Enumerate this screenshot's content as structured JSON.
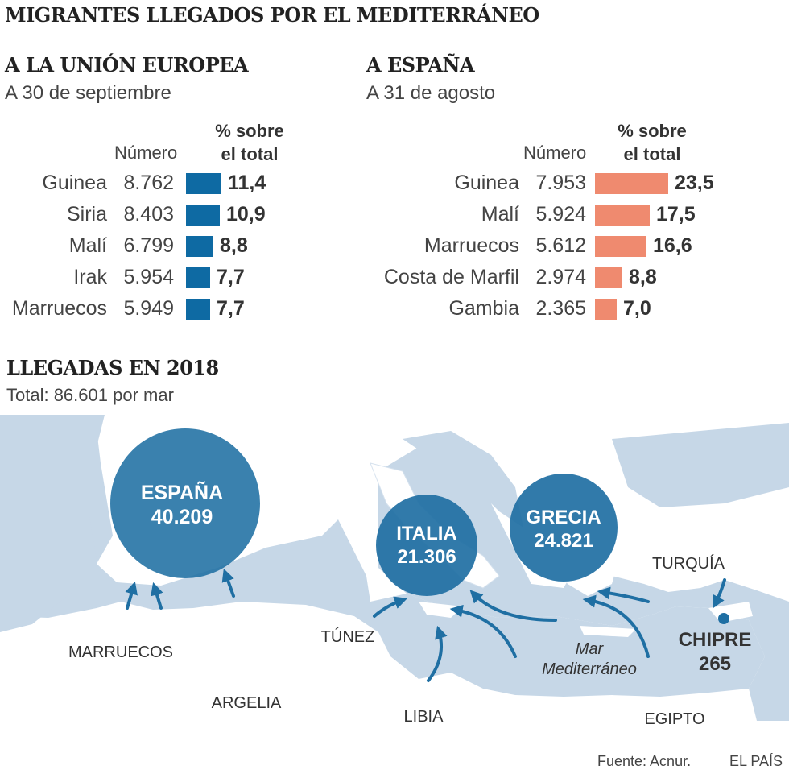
{
  "title": "MIGRANTES LLEGADOS POR EL MEDITERRÁNEO",
  "colors": {
    "eu": "#0e6aa3",
    "spain": "#ef8a6f",
    "sea": "#c8d8e8",
    "circle": "#1f6fa3"
  },
  "eu": {
    "heading": "A LA UNIÓN EUROPEA",
    "date": "A 30 de septiembre",
    "number_label": "Número",
    "pct_label_1": "% sobre",
    "pct_label_2": "el total"
  },
  "spain": {
    "heading": "A ESPAÑA",
    "date": "A 31 de agosto",
    "number_label": "Número",
    "pct_label_1": "% sobre",
    "pct_label_2": "el total"
  },
  "chart_data": [
    {
      "type": "bar",
      "title": "A LA UNIÓN EUROPEA",
      "categories": [
        "Guinea",
        "Siria",
        "Malí",
        "Irak",
        "Marruecos"
      ],
      "numbers": [
        "8.762",
        "8.403",
        "6.799",
        "5.954",
        "5.949"
      ],
      "values": [
        11.4,
        10.9,
        8.8,
        7.7,
        7.7
      ],
      "labels": [
        "11,4",
        "10,9",
        "8,8",
        "7,7",
        "7,7"
      ]
    },
    {
      "type": "bar",
      "title": "A ESPAÑA",
      "categories": [
        "Guinea",
        "Malí",
        "Marruecos",
        "Costa de Marfil",
        "Gambia"
      ],
      "numbers": [
        "7.953",
        "5.924",
        "5.612",
        "2.974",
        "2.365"
      ],
      "values": [
        23.5,
        17.5,
        16.6,
        8.8,
        7.0
      ],
      "labels": [
        "23,5",
        "17,5",
        "16,6",
        "8,8",
        "7,0"
      ]
    }
  ],
  "arrivals": {
    "heading": "LLEGADAS EN 2018",
    "total": "Total: 86.601 por mar",
    "destinations": [
      {
        "name": "ESPAÑA",
        "value": "40.209"
      },
      {
        "name": "ITALIA",
        "value": "21.306"
      },
      {
        "name": "GRECIA",
        "value": "24.821"
      },
      {
        "name": "CHIPRE",
        "value": "265"
      }
    ],
    "labels": {
      "marruecos": "MARRUECOS",
      "argelia": "ARGELIA",
      "tunez": "TÚNEZ",
      "libia": "LIBIA",
      "egipto": "EGIPTO",
      "turquia": "TURQUÍA",
      "mar1": "Mar",
      "mar2": "Mediterráneo"
    }
  },
  "footer": {
    "source": "Fuente: Acnur.",
    "brand": "EL PAÍS"
  }
}
